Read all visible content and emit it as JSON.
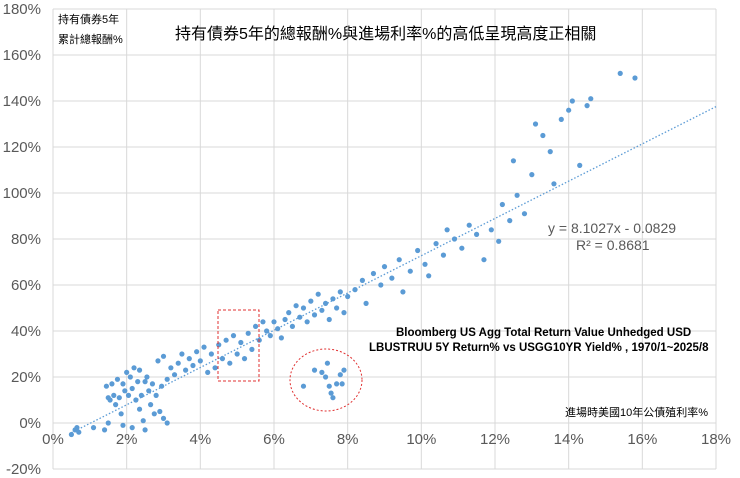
{
  "chart_data": {
    "type": "scatter",
    "title": "持有債券5年的總報酬%與進場利率%的高低呈現高度正相關",
    "ylabel": "持有債券5年\n累計總報酬%",
    "ylabel_lines": [
      "持有債券5年",
      "累計總報酬%"
    ],
    "xlabel": "進場時美國10年公債殖利率%",
    "subtitle_lines": [
      "Bloomberg US Agg Total Return Value Unhedged USD",
      "LBUSTRUU 5Y Return%  vs  USGG10YR  Yield% , 1970/1~2025/8"
    ],
    "xlim": [
      0,
      18
    ],
    "ylim": [
      -20,
      180
    ],
    "x_ticks": [
      "0%",
      "2%",
      "4%",
      "6%",
      "8%",
      "10%",
      "12%",
      "14%",
      "16%",
      "18%"
    ],
    "y_ticks": [
      "-20%",
      "0%",
      "20%",
      "40%",
      "60%",
      "80%",
      "100%",
      "120%",
      "140%",
      "160%",
      "180%"
    ],
    "grid": true,
    "marker_color": "#5B9BD5",
    "trendline": {
      "slope": 8.1027,
      "intercept": -0.0829,
      "equation": "y = 8.1027x - 0.0829",
      "r2": "R² = 0.8681",
      "style": "dotted",
      "color": "#5B9BD5"
    },
    "annotations": {
      "rect_color": "#E03030",
      "circle_color": "#E03030"
    },
    "points": [
      [
        0.5,
        -5
      ],
      [
        0.6,
        -3
      ],
      [
        0.65,
        -2
      ],
      [
        0.7,
        -4
      ],
      [
        1.1,
        -2
      ],
      [
        1.4,
        -3
      ],
      [
        1.5,
        0
      ],
      [
        1.45,
        16
      ],
      [
        1.5,
        11
      ],
      [
        1.55,
        10
      ],
      [
        1.6,
        17
      ],
      [
        1.65,
        12
      ],
      [
        1.7,
        8
      ],
      [
        1.75,
        19
      ],
      [
        1.8,
        11
      ],
      [
        1.85,
        4
      ],
      [
        1.9,
        17
      ],
      [
        1.95,
        14
      ],
      [
        1.9,
        -1
      ],
      [
        2.0,
        22
      ],
      [
        2.05,
        12
      ],
      [
        2.1,
        20
      ],
      [
        2.15,
        15
      ],
      [
        2.15,
        -2
      ],
      [
        2.2,
        24
      ],
      [
        2.25,
        10
      ],
      [
        2.3,
        18
      ],
      [
        2.35,
        6
      ],
      [
        2.35,
        23
      ],
      [
        2.4,
        12
      ],
      [
        2.45,
        1
      ],
      [
        2.5,
        18
      ],
      [
        2.5,
        -3
      ],
      [
        2.55,
        20
      ],
      [
        2.6,
        14
      ],
      [
        2.65,
        8
      ],
      [
        2.7,
        17
      ],
      [
        2.75,
        4
      ],
      [
        2.8,
        12
      ],
      [
        2.85,
        27
      ],
      [
        2.9,
        5
      ],
      [
        2.95,
        16
      ],
      [
        3.0,
        29
      ],
      [
        3.0,
        2
      ],
      [
        3.1,
        0
      ],
      [
        3.1,
        19
      ],
      [
        3.2,
        24
      ],
      [
        3.3,
        21
      ],
      [
        3.4,
        26
      ],
      [
        3.5,
        30
      ],
      [
        3.6,
        23
      ],
      [
        3.7,
        28
      ],
      [
        3.8,
        25
      ],
      [
        3.9,
        31
      ],
      [
        4.0,
        27
      ],
      [
        4.1,
        33
      ],
      [
        4.2,
        22
      ],
      [
        4.3,
        30
      ],
      [
        4.4,
        24
      ],
      [
        4.5,
        34
      ],
      [
        4.6,
        28
      ],
      [
        4.7,
        36
      ],
      [
        4.8,
        26
      ],
      [
        4.9,
        38
      ],
      [
        5.0,
        30
      ],
      [
        5.1,
        35
      ],
      [
        5.2,
        28
      ],
      [
        5.3,
        39
      ],
      [
        5.4,
        32
      ],
      [
        5.5,
        42
      ],
      [
        5.6,
        36
      ],
      [
        5.7,
        44
      ],
      [
        5.8,
        40
      ],
      [
        5.9,
        38
      ],
      [
        6.0,
        44
      ],
      [
        6.1,
        41
      ],
      [
        6.2,
        37
      ],
      [
        6.3,
        45
      ],
      [
        6.4,
        48
      ],
      [
        6.5,
        42
      ],
      [
        6.6,
        51
      ],
      [
        6.7,
        46
      ],
      [
        6.8,
        50
      ],
      [
        6.9,
        44
      ],
      [
        7.0,
        53
      ],
      [
        7.1,
        47
      ],
      [
        7.2,
        56
      ],
      [
        7.3,
        49
      ],
      [
        7.4,
        52
      ],
      [
        7.5,
        45
      ],
      [
        7.6,
        54
      ],
      [
        7.7,
        50
      ],
      [
        7.8,
        57
      ],
      [
        7.9,
        48
      ],
      [
        8.0,
        55
      ],
      [
        6.8,
        16
      ],
      [
        7.1,
        23
      ],
      [
        7.3,
        22
      ],
      [
        7.4,
        20
      ],
      [
        7.45,
        26
      ],
      [
        7.5,
        16
      ],
      [
        7.6,
        11
      ],
      [
        7.7,
        17
      ],
      [
        7.8,
        21
      ],
      [
        7.9,
        23
      ],
      [
        7.85,
        17
      ],
      [
        7.55,
        13
      ],
      [
        8.2,
        58
      ],
      [
        8.4,
        62
      ],
      [
        8.5,
        52
      ],
      [
        8.7,
        65
      ],
      [
        8.9,
        60
      ],
      [
        9.0,
        68
      ],
      [
        9.2,
        63
      ],
      [
        9.4,
        71
      ],
      [
        9.5,
        57
      ],
      [
        9.7,
        66
      ],
      [
        9.9,
        75
      ],
      [
        10.1,
        69
      ],
      [
        10.2,
        64
      ],
      [
        10.4,
        78
      ],
      [
        10.6,
        73
      ],
      [
        10.7,
        84
      ],
      [
        10.9,
        80
      ],
      [
        11.1,
        76
      ],
      [
        11.3,
        86
      ],
      [
        11.5,
        82
      ],
      [
        11.7,
        71
      ],
      [
        11.9,
        84
      ],
      [
        12.1,
        79
      ],
      [
        12.2,
        95
      ],
      [
        12.4,
        88
      ],
      [
        12.5,
        114
      ],
      [
        12.6,
        99
      ],
      [
        12.8,
        91
      ],
      [
        13.0,
        108
      ],
      [
        13.1,
        130
      ],
      [
        13.3,
        125
      ],
      [
        13.5,
        118
      ],
      [
        13.6,
        104
      ],
      [
        13.8,
        132
      ],
      [
        14.0,
        136
      ],
      [
        14.1,
        140
      ],
      [
        14.3,
        112
      ],
      [
        14.5,
        138
      ],
      [
        14.6,
        141
      ],
      [
        15.4,
        152
      ],
      [
        15.8,
        150
      ]
    ]
  }
}
